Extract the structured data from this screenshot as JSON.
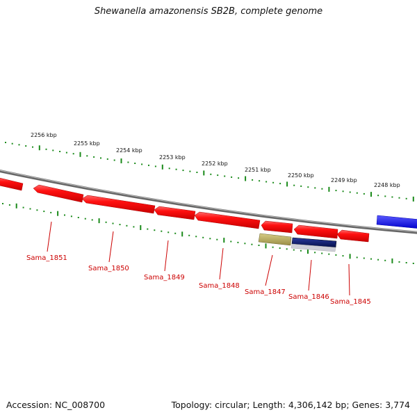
{
  "title": "Shewanella amazonensis SB2B, complete genome",
  "footer": {
    "accession": "Accession: NC_008700",
    "summary": "Topology: circular; Length: 4,306,142 bp; Genes: 3,774"
  },
  "colors": {
    "gene": "#ee0000",
    "gene_dark": "#b00000",
    "backbone": "#888888",
    "ticks": "#1a8a1a",
    "label": "#cc0000",
    "feature_olive": "#b5a95a",
    "feature_navy": "#0a1a6e",
    "feature_blue": "#1414ff"
  },
  "scale_labels": [
    "2256 kbp",
    "2255 kbp",
    "2254 kbp",
    "2253 kbp",
    "2252 kbp",
    "2251 kbp",
    "2250 kbp",
    "2249 kbp",
    "2248 kbp"
  ],
  "genes": [
    {
      "label": "",
      "strand": "+"
    },
    {
      "label": "Sama_1851",
      "strand": "-"
    },
    {
      "label": "Sama_1850",
      "strand": "-"
    },
    {
      "label": "Sama_1849",
      "strand": "-"
    },
    {
      "label": "Sama_1848",
      "strand": "-"
    },
    {
      "label": "Sama_1847",
      "strand": "-"
    },
    {
      "label": "Sama_1846",
      "strand": "-"
    },
    {
      "label": "Sama_1845",
      "strand": "-"
    }
  ]
}
